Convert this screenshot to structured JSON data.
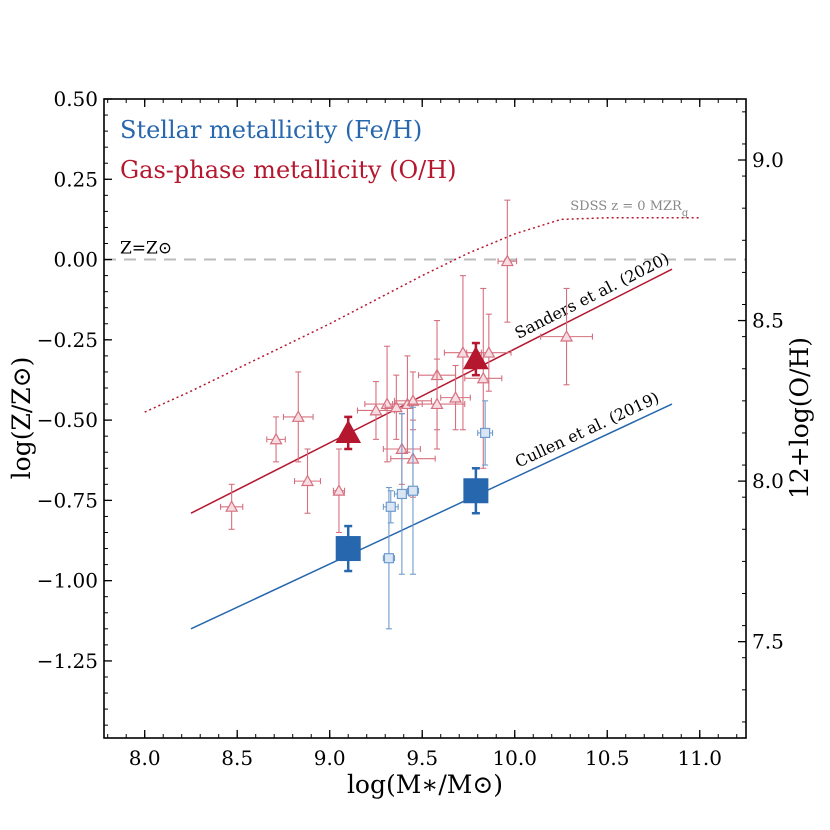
{
  "chart_data": {
    "type": "scatter",
    "xlabel": "log(M∗/M⊙)",
    "ylabel": "log(Z/Z⊙)",
    "y2label": "12+log(O/H)",
    "xlim": [
      7.78,
      11.25
    ],
    "ylim": [
      -1.49,
      0.5
    ],
    "y2lim": [
      7.2,
      9.19
    ],
    "xticks": [
      "8.0",
      "8.5",
      "9.0",
      "9.5",
      "10.0",
      "10.5",
      "11.0"
    ],
    "yticks": [
      "0.50",
      "0.25",
      "0.00",
      "−0.25",
      "−0.50",
      "−0.75",
      "−1.00",
      "−1.25"
    ],
    "y2ticks": [
      "9.0",
      "8.5",
      "8.0",
      "7.5"
    ],
    "legend": {
      "stellar": "Stellar metallicity (Fe/H)",
      "gas": "Gas-phase metallicity (O/H)"
    },
    "colors": {
      "stellar": "#2767ae",
      "gas": "#b5172f",
      "gas_light": "#d6707f",
      "stellar_light": "#6f9bcf",
      "solar_line": "#bbbbbb"
    },
    "solar_line": {
      "y": 0.0,
      "label": "Z=Z⊙"
    },
    "reference_curves": [
      {
        "name": "SDSS z = 0 MZRg",
        "label": "SDSS z = 0 MZR",
        "label_sub": "g",
        "style": "dotted",
        "x": [
          8.0,
          8.25,
          8.5,
          8.75,
          9.0,
          9.25,
          9.5,
          9.75,
          10.0,
          10.25,
          10.5,
          10.75,
          11.0
        ],
        "y": [
          -0.475,
          -0.41,
          -0.34,
          -0.27,
          -0.2,
          -0.125,
          -0.05,
          0.02,
          0.08,
          0.125,
          0.13,
          0.13,
          0.13
        ]
      }
    ],
    "fit_lines": [
      {
        "name": "Sanders et al. (2020)",
        "x": [
          8.25,
          10.85
        ],
        "y": [
          -0.79,
          -0.03
        ]
      },
      {
        "name": "Cullen et al. (2019)",
        "x": [
          8.25,
          10.85
        ],
        "y": [
          -1.15,
          -0.45
        ]
      }
    ],
    "series": [
      {
        "name": "Gas-phase individual",
        "marker": "open-triangle",
        "points": [
          {
            "x": 8.47,
            "y": -0.77,
            "xerr": 0.06,
            "yerr": 0.07
          },
          {
            "x": 8.71,
            "y": -0.56,
            "xerr": 0.05,
            "yerr": 0.07
          },
          {
            "x": 8.83,
            "y": -0.49,
            "xerr": 0.08,
            "yerr": 0.14
          },
          {
            "x": 8.88,
            "y": -0.69,
            "xerr": 0.07,
            "yerr": 0.1
          },
          {
            "x": 9.05,
            "y": -0.72,
            "xerr": 0.03,
            "yerr": 0.13
          },
          {
            "x": 9.25,
            "y": -0.47,
            "xerr": 0.1,
            "yerr": 0.09
          },
          {
            "x": 9.31,
            "y": -0.45,
            "xerr": 0.12,
            "yerr": 0.18
          },
          {
            "x": 9.36,
            "y": -0.46,
            "xerr": 0.06,
            "yerr": 0.1
          },
          {
            "x": 9.39,
            "y": -0.59,
            "xerr": 0.1,
            "yerr": 0.11
          },
          {
            "x": 9.42,
            "y": -0.45,
            "xerr": 0.08,
            "yerr": 0.15
          },
          {
            "x": 9.45,
            "y": -0.44,
            "xerr": 0.1,
            "yerr": 0.09
          },
          {
            "x": 9.45,
            "y": -0.62,
            "xerr": 0.12,
            "yerr": 0.12
          },
          {
            "x": 9.58,
            "y": -0.36,
            "xerr": 0.1,
            "yerr": 0.17
          },
          {
            "x": 9.58,
            "y": -0.45,
            "xerr": 0.15,
            "yerr": 0.14
          },
          {
            "x": 9.68,
            "y": -0.43,
            "xerr": 0.08,
            "yerr": 0.1
          },
          {
            "x": 9.72,
            "y": -0.29,
            "xerr": 0.1,
            "yerr": 0.24
          },
          {
            "x": 9.83,
            "y": -0.37,
            "xerr": 0.1,
            "yerr": 0.28
          },
          {
            "x": 9.86,
            "y": -0.29,
            "xerr": 0.12,
            "yerr": 0.12
          },
          {
            "x": 9.96,
            "y": -0.005,
            "xerr": 0.05,
            "yerr": 0.19
          },
          {
            "x": 10.28,
            "y": -0.24,
            "xerr": 0.14,
            "yerr": 0.15
          }
        ]
      },
      {
        "name": "Stellar individual",
        "marker": "open-square",
        "points": [
          {
            "x": 9.32,
            "y": -0.93,
            "xerr": 0.03,
            "yerr": 0.22
          },
          {
            "x": 9.33,
            "y": -0.77,
            "xerr": 0.04,
            "yerr": 0.05
          },
          {
            "x": 9.39,
            "y": -0.73,
            "xerr": 0.04,
            "yerr": 0.25
          },
          {
            "x": 9.45,
            "y": -0.72,
            "xerr": 0.03,
            "yerr": 0.26
          },
          {
            "x": 9.84,
            "y": -0.54,
            "xerr": 0.04,
            "yerr": 0.1
          }
        ]
      },
      {
        "name": "Gas-phase stacked",
        "marker": "filled-triangle",
        "points": [
          {
            "x": 9.1,
            "y": -0.54,
            "yerr": 0.05
          },
          {
            "x": 9.79,
            "y": -0.31,
            "yerr": 0.05
          }
        ]
      },
      {
        "name": "Stellar stacked",
        "marker": "filled-square",
        "points": [
          {
            "x": 9.1,
            "y": -0.9,
            "yerr": 0.07
          },
          {
            "x": 9.79,
            "y": -0.72,
            "yerr": 0.07
          }
        ]
      }
    ]
  }
}
